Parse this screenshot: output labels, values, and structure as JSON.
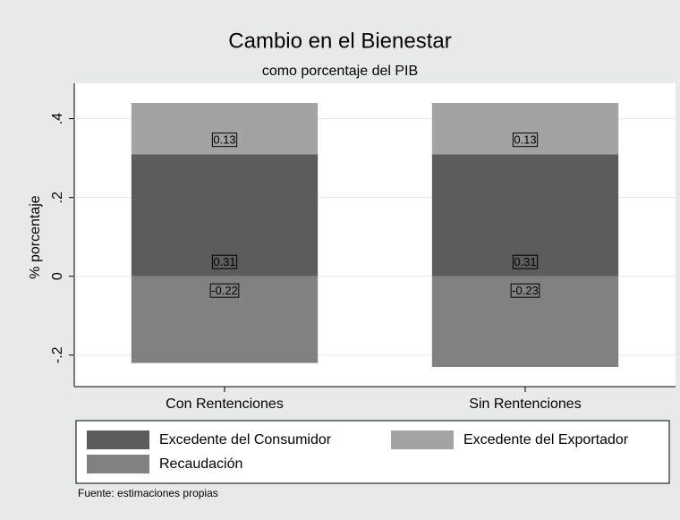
{
  "chart_data": {
    "type": "bar",
    "stacked": true,
    "title": "Cambio en el Bienestar",
    "subtitle": "como porcentaje del PIB",
    "y_label": "% porcentaje",
    "note": "Fuente: estimaciones propias",
    "categories": [
      "Con Rentenciones",
      "Sin Rentenciones"
    ],
    "series": [
      {
        "name": "Excedente del Consumidor",
        "color": "#5c5c5c",
        "values": [
          0.31,
          0.31
        ]
      },
      {
        "name": "Excedente del Exportador",
        "color": "#a3a3a3",
        "values": [
          0.13,
          0.13
        ]
      },
      {
        "name": "Recaudación",
        "color": "#818181",
        "values": [
          -0.22,
          -0.23
        ]
      }
    ],
    "ylim": [
      -0.28,
      0.49
    ],
    "yticks": [
      {
        "value": -0.2,
        "label": "-.2"
      },
      0,
      {
        "value": 0.2,
        "label": ".2"
      },
      {
        "value": 0.4,
        "label": ".4"
      }
    ],
    "grid": true
  }
}
